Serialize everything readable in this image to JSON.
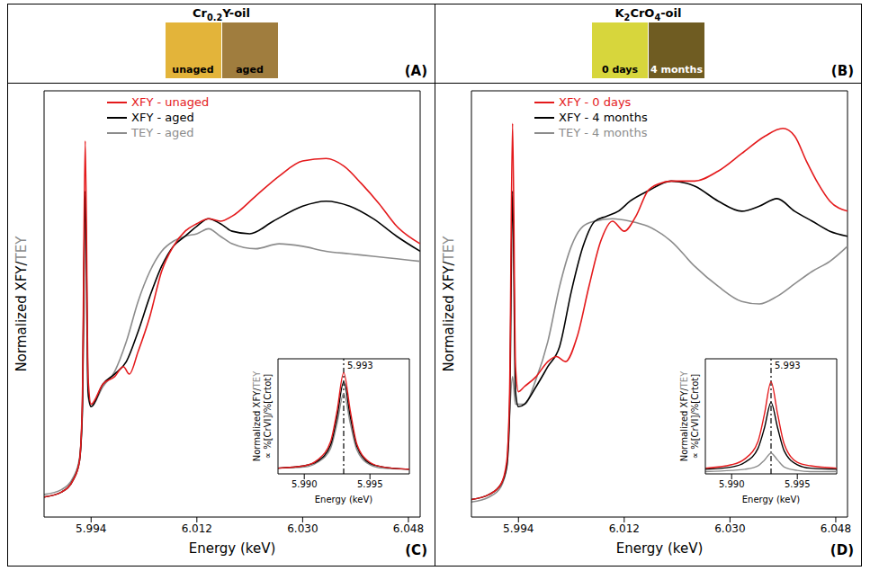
{
  "swatches": [
    {
      "annotation": "(A)",
      "title": "Cr0.2Y-oil",
      "items": [
        {
          "label": "unaged",
          "color": "#e3b43a"
        },
        {
          "label": "aged",
          "color": "#a07d3e"
        }
      ]
    },
    {
      "annotation": "(B)",
      "title": "K2CrO4-oil",
      "items": [
        {
          "label": "0 days",
          "color": "#d7d63c"
        },
        {
          "label": "4 months",
          "color": "#6f5c22"
        }
      ]
    }
  ],
  "chart_data": [
    {
      "type": "line",
      "annotations": [
        "(C)"
      ],
      "xlabel": "Energy (keV)",
      "ylabel": "Normalized XFY/TEY",
      "xlim": [
        5.986,
        6.05
      ],
      "xticks": [
        5.994,
        6.012,
        {
          "value": 6.03,
          "label": "6.030"
        },
        6.048
      ],
      "ylim": [
        0,
        1.7
      ],
      "tick_labels": "x",
      "legend": "upper left",
      "series": [
        {
          "name": "XFY - unaged",
          "color": "#e41a1c",
          "x": [
            5.986,
            5.989,
            5.991,
            5.992,
            5.9925,
            5.993,
            5.9935,
            5.994,
            5.996,
            5.998,
            5.9995,
            6.0005,
            6.002,
            6.004,
            6.006,
            6.008,
            6.01,
            6.012,
            6.014,
            6.016,
            6.018,
            6.022,
            6.026,
            6.03,
            6.034,
            6.037,
            6.04,
            6.043,
            6.046,
            6.05
          ],
          "values": [
            0.08,
            0.1,
            0.15,
            0.22,
            0.45,
            1.5,
            0.55,
            0.45,
            0.53,
            0.56,
            0.6,
            0.57,
            0.66,
            0.8,
            0.98,
            1.08,
            1.14,
            1.17,
            1.19,
            1.18,
            1.2,
            1.28,
            1.36,
            1.42,
            1.43,
            1.4,
            1.33,
            1.25,
            1.16,
            1.09
          ]
        },
        {
          "name": "XFY - aged",
          "color": "#000000",
          "x": [
            5.986,
            5.989,
            5.991,
            5.992,
            5.9925,
            5.993,
            5.9935,
            5.994,
            5.996,
            5.998,
            6.0,
            6.002,
            6.004,
            6.006,
            6.008,
            6.01,
            6.012,
            6.014,
            6.016,
            6.018,
            6.021,
            6.025,
            6.03,
            6.034,
            6.038,
            6.042,
            6.046,
            6.05
          ],
          "values": [
            0.08,
            0.1,
            0.15,
            0.22,
            0.42,
            1.3,
            0.5,
            0.44,
            0.53,
            0.57,
            0.62,
            0.74,
            0.88,
            1.0,
            1.08,
            1.12,
            1.16,
            1.19,
            1.17,
            1.14,
            1.13,
            1.18,
            1.24,
            1.26,
            1.24,
            1.19,
            1.12,
            1.06
          ]
        },
        {
          "name": "TEY - aged",
          "color": "#8c8c8c",
          "x": [
            5.986,
            5.989,
            5.991,
            5.992,
            5.9925,
            5.993,
            5.9935,
            5.994,
            5.996,
            5.998,
            6.0,
            6.002,
            6.004,
            6.006,
            6.008,
            6.01,
            6.012,
            6.014,
            6.016,
            6.018,
            6.022,
            6.026,
            6.03,
            6.034,
            6.038,
            6.042,
            6.046,
            6.05
          ],
          "values": [
            0.09,
            0.11,
            0.16,
            0.23,
            0.4,
            1.22,
            0.48,
            0.44,
            0.52,
            0.58,
            0.7,
            0.86,
            0.98,
            1.06,
            1.1,
            1.12,
            1.13,
            1.15,
            1.12,
            1.09,
            1.07,
            1.09,
            1.08,
            1.06,
            1.05,
            1.04,
            1.03,
            1.02
          ]
        }
      ],
      "inset": {
        "type": "line",
        "xlabel": "Energy (keV)",
        "ylabel": [
          "Normalized XFY/TEY",
          "∝ %[CrVI]/%[Crtot]"
        ],
        "xlim": [
          5.988,
          5.998
        ],
        "xticks": [
          {
            "value": 5.99,
            "label": "5.990"
          },
          5.995
        ],
        "ylim": [
          0,
          1
        ],
        "tick_labels": "x",
        "vline": {
          "x": 5.993,
          "line_style": "dashdot"
        },
        "series": [
          {
            "color": "#e41a1c",
            "x": [
              5.988,
              5.99,
              5.991,
              5.992,
              5.9925,
              5.993,
              5.9935,
              5.994,
              5.995,
              5.996,
              5.998
            ],
            "values": [
              0.05,
              0.07,
              0.12,
              0.28,
              0.55,
              0.88,
              0.55,
              0.26,
              0.1,
              0.06,
              0.04
            ]
          },
          {
            "color": "#000000",
            "x": [
              5.988,
              5.99,
              5.991,
              5.992,
              5.9925,
              5.993,
              5.9935,
              5.994,
              5.995,
              5.996,
              5.998
            ],
            "values": [
              0.05,
              0.07,
              0.11,
              0.25,
              0.5,
              0.8,
              0.5,
              0.24,
              0.09,
              0.06,
              0.04
            ]
          },
          {
            "color": "#8c8c8c",
            "x": [
              5.988,
              5.99,
              5.991,
              5.992,
              5.9925,
              5.993,
              5.9935,
              5.994,
              5.995,
              5.996,
              5.998
            ],
            "values": [
              0.05,
              0.06,
              0.1,
              0.22,
              0.44,
              0.7,
              0.44,
              0.21,
              0.08,
              0.05,
              0.04
            ]
          }
        ]
      }
    },
    {
      "type": "line",
      "annotations": [
        "(D)"
      ],
      "xlabel": "Energy (keV)",
      "ylabel": "Normalized XFY/TEY",
      "xlim": [
        5.986,
        6.05
      ],
      "xticks": [
        5.994,
        6.012,
        {
          "value": 6.03,
          "label": "6.030"
        },
        6.048
      ],
      "ylim": [
        0,
        1.7
      ],
      "tick_labels": "x",
      "legend": "upper left",
      "series": [
        {
          "name": "XFY - 0 days",
          "color": "#e41a1c",
          "x": [
            5.986,
            5.989,
            5.991,
            5.992,
            5.9925,
            5.993,
            5.9935,
            5.994,
            5.995,
            5.997,
            5.999,
            6.0005,
            6.002,
            6.004,
            6.006,
            6.008,
            6.01,
            6.012,
            6.014,
            6.016,
            6.018,
            6.02,
            6.024,
            6.028,
            6.032,
            6.036,
            6.039,
            6.041,
            6.043,
            6.045,
            6.047,
            6.05
          ],
          "values": [
            0.07,
            0.09,
            0.13,
            0.22,
            0.5,
            1.57,
            0.6,
            0.5,
            0.52,
            0.56,
            0.62,
            0.64,
            0.62,
            0.72,
            0.92,
            1.1,
            1.18,
            1.14,
            1.2,
            1.3,
            1.33,
            1.34,
            1.34,
            1.38,
            1.45,
            1.52,
            1.55,
            1.52,
            1.42,
            1.33,
            1.26,
            1.22
          ]
        },
        {
          "name": "XFY - 4 months",
          "color": "#000000",
          "x": [
            5.986,
            5.989,
            5.991,
            5.992,
            5.9925,
            5.993,
            5.9935,
            5.994,
            5.995,
            5.997,
            5.999,
            6.001,
            6.003,
            6.005,
            6.007,
            6.009,
            6.011,
            6.013,
            6.016,
            6.02,
            6.024,
            6.028,
            6.032,
            6.035,
            6.038,
            6.041,
            6.044,
            6.047,
            6.05
          ],
          "values": [
            0.07,
            0.09,
            0.13,
            0.2,
            0.42,
            1.3,
            0.5,
            0.44,
            0.45,
            0.52,
            0.6,
            0.68,
            0.9,
            1.08,
            1.18,
            1.2,
            1.22,
            1.26,
            1.3,
            1.34,
            1.32,
            1.26,
            1.22,
            1.24,
            1.27,
            1.22,
            1.18,
            1.14,
            1.12
          ]
        },
        {
          "name": "TEY - 4 months",
          "color": "#8c8c8c",
          "x": [
            5.986,
            5.989,
            5.991,
            5.992,
            5.9925,
            5.993,
            5.9935,
            5.995,
            5.997,
            5.999,
            6.001,
            6.003,
            6.005,
            6.007,
            6.01,
            6.013,
            6.016,
            6.02,
            6.024,
            6.028,
            6.032,
            6.035,
            6.038,
            6.041,
            6.044,
            6.047,
            6.05
          ],
          "values": [
            0.06,
            0.08,
            0.12,
            0.2,
            0.42,
            0.56,
            0.45,
            0.45,
            0.55,
            0.7,
            0.92,
            1.08,
            1.16,
            1.18,
            1.19,
            1.18,
            1.16,
            1.1,
            1.0,
            0.92,
            0.86,
            0.85,
            0.88,
            0.93,
            0.98,
            1.02,
            1.08
          ]
        }
      ],
      "inset": {
        "type": "line",
        "xlabel": "Energy (keV)",
        "ylabel": [
          "Normalized XFY/TEY",
          "∝ %[CrVI]/%[Crtot]"
        ],
        "xlim": [
          5.988,
          5.998
        ],
        "xticks": [
          {
            "value": 5.99,
            "label": "5.990"
          },
          5.995
        ],
        "ylim": [
          0,
          1
        ],
        "tick_labels": "x",
        "vline": {
          "x": 5.993,
          "line_style": "dashdot"
        },
        "series": [
          {
            "color": "#e41a1c",
            "x": [
              5.988,
              5.99,
              5.991,
              5.992,
              5.9925,
              5.993,
              5.9935,
              5.994,
              5.995,
              5.996,
              5.998
            ],
            "values": [
              0.05,
              0.08,
              0.13,
              0.28,
              0.52,
              0.8,
              0.52,
              0.26,
              0.1,
              0.07,
              0.05
            ]
          },
          {
            "color": "#000000",
            "x": [
              5.988,
              5.99,
              5.991,
              5.992,
              5.9925,
              5.993,
              5.9935,
              5.994,
              5.995,
              5.996,
              5.998
            ],
            "values": [
              0.04,
              0.06,
              0.1,
              0.22,
              0.4,
              0.62,
              0.4,
              0.2,
              0.08,
              0.05,
              0.04
            ]
          },
          {
            "color": "#8c8c8c",
            "x": [
              5.988,
              5.99,
              5.991,
              5.992,
              5.9925,
              5.993,
              5.9935,
              5.994,
              5.995,
              5.996,
              5.998
            ],
            "values": [
              0.02,
              0.03,
              0.04,
              0.07,
              0.12,
              0.18,
              0.12,
              0.06,
              0.03,
              0.02,
              0.02
            ]
          }
        ]
      }
    }
  ]
}
